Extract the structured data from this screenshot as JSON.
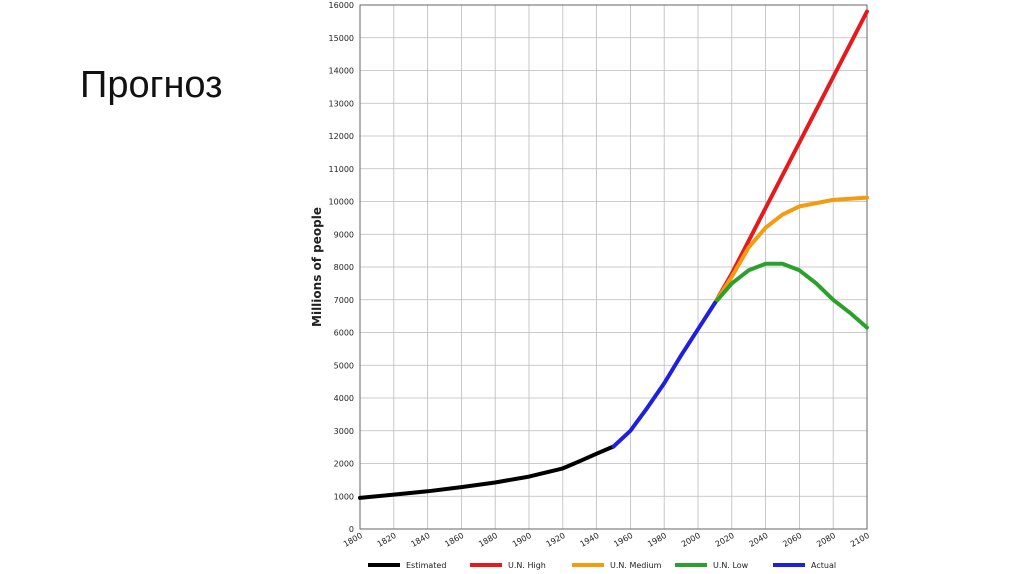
{
  "slide_title": "Прогноз",
  "chart_data": {
    "type": "line",
    "y_label": "Millions of people",
    "xlim": [
      1800,
      2100
    ],
    "xticks": [
      1800,
      1820,
      1840,
      1860,
      1880,
      1900,
      1920,
      1940,
      1960,
      1980,
      2000,
      2020,
      2040,
      2060,
      2080,
      2100
    ],
    "ylim": [
      0,
      16000
    ],
    "yticks": [
      0,
      1000,
      2000,
      3000,
      4000,
      5000,
      6000,
      7000,
      8000,
      9000,
      10000,
      11000,
      12000,
      13000,
      14000,
      15000,
      16000
    ],
    "grid": true,
    "legend": "bottom",
    "series": [
      {
        "name": "Estimated",
        "color": "#000000",
        "x": [
          1800,
          1820,
          1840,
          1860,
          1880,
          1900,
          1920,
          1930,
          1940,
          1950
        ],
        "values": [
          950,
          1050,
          1150,
          1280,
          1420,
          1600,
          1850,
          2070,
          2300,
          2520
        ]
      },
      {
        "name": "U.N. High",
        "color": "#e41a1c",
        "x": [
          2010,
          2020,
          2040,
          2060,
          2080,
          2100
        ],
        "values": [
          6900,
          7800,
          9800,
          11800,
          13800,
          15800
        ]
      },
      {
        "name": "U.N. Medium",
        "color": "#f39c12",
        "x": [
          2010,
          2020,
          2030,
          2040,
          2050,
          2060,
          2080,
          2100
        ],
        "values": [
          6900,
          7700,
          8600,
          9200,
          9600,
          9850,
          10050,
          10120
        ]
      },
      {
        "name": "U.N. Low",
        "color": "#2ca02c",
        "x": [
          2010,
          2020,
          2030,
          2040,
          2050,
          2060,
          2070,
          2080,
          2090,
          2100
        ],
        "values": [
          6900,
          7500,
          7900,
          8100,
          8100,
          7900,
          7500,
          7000,
          6600,
          6150
        ]
      },
      {
        "name": "Actual",
        "color": "#1f1fdf",
        "x": [
          1950,
          1960,
          1970,
          1980,
          1990,
          2000,
          2010
        ],
        "values": [
          2520,
          3000,
          3700,
          4450,
          5300,
          6100,
          6900
        ]
      }
    ]
  }
}
